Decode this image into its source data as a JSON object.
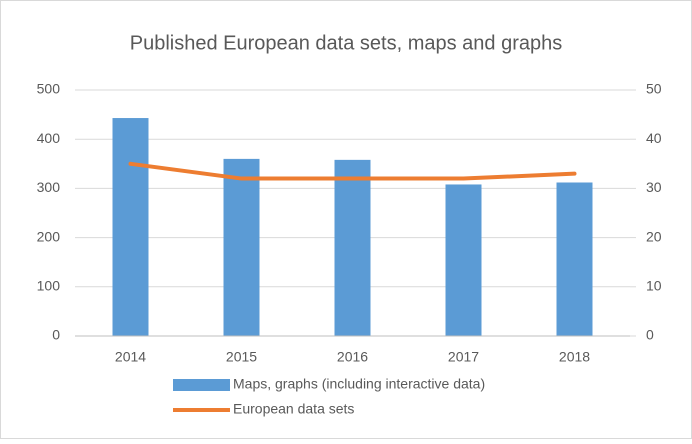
{
  "chart_data": {
    "type": "bar-line",
    "title": "Published European data sets, maps and graphs",
    "categories": [
      "2014",
      "2015",
      "2016",
      "2017",
      "2018"
    ],
    "series": [
      {
        "name": "Maps, graphs (including interactive data)",
        "type": "bar",
        "color": "#5b9bd5",
        "values": [
          443,
          360,
          358,
          308,
          312
        ]
      },
      {
        "name": "European data sets",
        "type": "line",
        "axis": "y2",
        "color": "#ed7d31",
        "values": [
          35,
          32,
          32,
          32,
          33
        ]
      }
    ],
    "ylim": [
      0,
      500
    ],
    "yticks": [
      0,
      100,
      200,
      300,
      400,
      500
    ],
    "y2lim": [
      0,
      50
    ],
    "y2ticks": [
      0,
      10,
      20,
      30,
      40,
      50
    ],
    "grid": true,
    "legend": "bottom"
  }
}
